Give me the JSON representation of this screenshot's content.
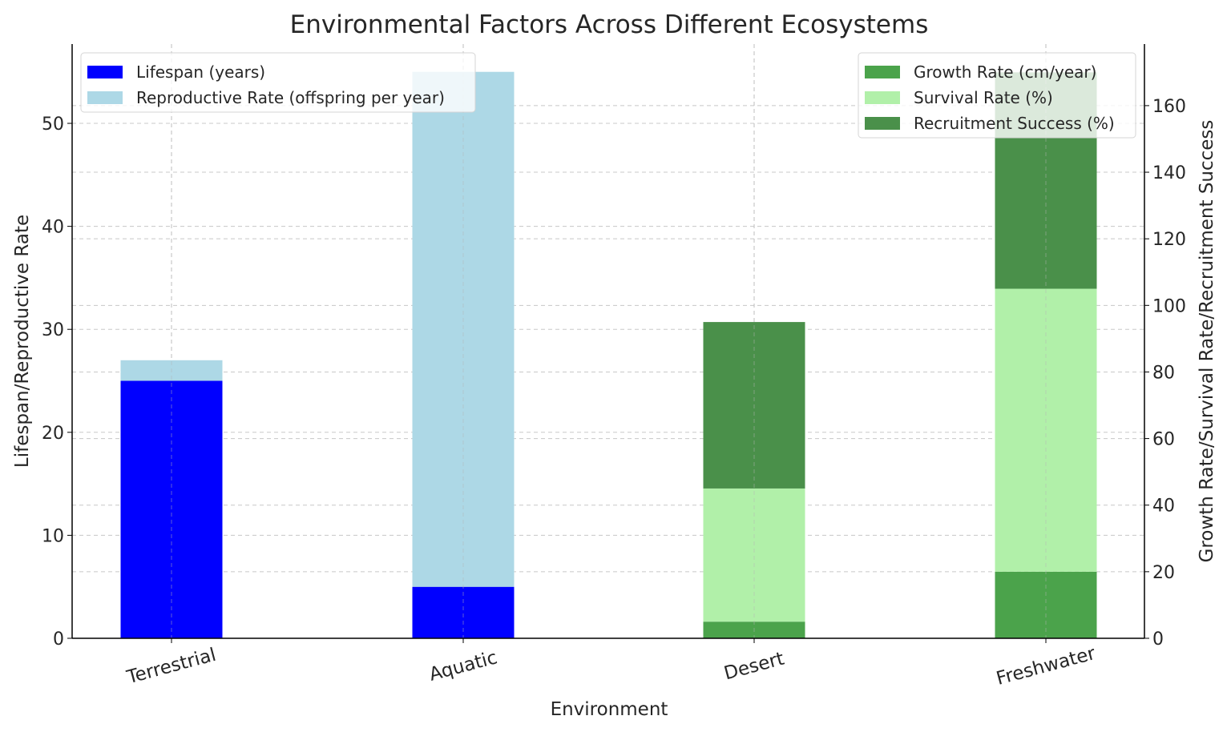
{
  "chart_data": {
    "type": "bar",
    "title": "Environmental Factors Across Different Ecosystems",
    "xlabel": "Environment",
    "ylabel_left": "Lifespan/Reproductive Rate",
    "ylabel_right": "Growth Rate/Survival Rate/Recruitment Success",
    "categories": [
      "Terrestrial",
      "Aquatic",
      "Desert",
      "Freshwater"
    ],
    "left_axis": {
      "ylim": [
        0,
        57.7
      ],
      "ticks": [
        0,
        10,
        20,
        30,
        40,
        50
      ],
      "series": [
        {
          "name": "Lifespan (years)",
          "color": "#0000ff",
          "values": [
            25,
            5,
            null,
            null
          ]
        },
        {
          "name": "Reproductive Rate (offspring per year)",
          "color": "#add8e6",
          "values": [
            2,
            50,
            null,
            null
          ]
        }
      ],
      "legend": "top-left"
    },
    "right_axis": {
      "ylim": [
        0,
        178.5
      ],
      "ticks": [
        0,
        20,
        40,
        60,
        80,
        100,
        120,
        140,
        160
      ],
      "series": [
        {
          "name": "Growth Rate (cm/year)",
          "color": "#4ba34b",
          "values": [
            null,
            null,
            5,
            20
          ]
        },
        {
          "name": "Survival Rate (%)",
          "color": "#b1f0a9",
          "values": [
            null,
            null,
            40,
            85
          ]
        },
        {
          "name": "Recruitment Success (%)",
          "color": "#4a904a",
          "values": [
            null,
            null,
            50,
            65
          ]
        }
      ],
      "legend": "top-right"
    },
    "stacked": true,
    "grid": true
  }
}
